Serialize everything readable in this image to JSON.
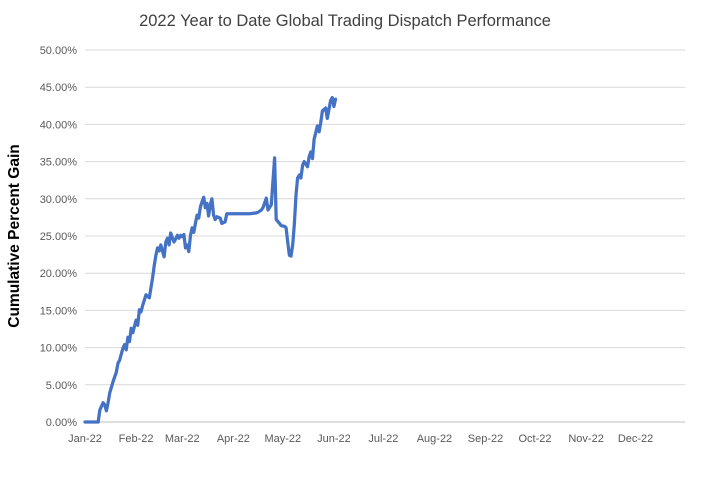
{
  "chart": {
    "title": "2022 Year to Date Global Trading Dispatch Performance",
    "y_axis_title": "Cumulative Percent Gain",
    "colors": {
      "line": "#4472C4",
      "gridline": "#D9D9D9",
      "axis_line": "#BFBFBF",
      "tick_text": "#595959",
      "title_text": "#404040",
      "y_axis_title_text": "#000000",
      "background": "#FFFFFF"
    }
  },
  "chart_data": {
    "type": "line",
    "title": "2022 Year to Date Global Trading Dispatch Performance",
    "xlabel": "",
    "ylabel": "Cumulative Percent Gain",
    "ylim": [
      0,
      50
    ],
    "grid": true,
    "legend": false,
    "y_tick_values": [
      0,
      5,
      10,
      15,
      20,
      25,
      30,
      35,
      40,
      45,
      50
    ],
    "y_tick_labels": [
      "0.00%",
      "5.00%",
      "10.00%",
      "15.00%",
      "20.00%",
      "25.00%",
      "30.00%",
      "35.00%",
      "40.00%",
      "45.00%",
      "50.00%"
    ],
    "x_tick_labels": [
      "Jan-22",
      "Feb-22",
      "Mar-22",
      "Apr-22",
      "May-22",
      "Jun-22",
      "Jul-22",
      "Aug-22",
      "Sep-22",
      "Oct-22",
      "Nov-22",
      "Dec-22"
    ],
    "x_tick_days_of_year": [
      1,
      32,
      60,
      91,
      121,
      152,
      182,
      213,
      244,
      274,
      305,
      335
    ],
    "x_range_days": [
      1,
      365
    ],
    "series": [
      {
        "name": "Cumulative Percent Gain",
        "color": "#4472C4",
        "points": [
          [
            "2022-01-01",
            0.0
          ],
          [
            "2022-01-06",
            0.0
          ],
          [
            "2022-01-09",
            0.0
          ],
          [
            "2022-01-10",
            1.6
          ],
          [
            "2022-01-12",
            2.6
          ],
          [
            "2022-01-13",
            2.3
          ],
          [
            "2022-01-14",
            1.5
          ],
          [
            "2022-01-15",
            2.6
          ],
          [
            "2022-01-16",
            3.9
          ],
          [
            "2022-01-18",
            5.4
          ],
          [
            "2022-01-20",
            6.7
          ],
          [
            "2022-01-21",
            7.9
          ],
          [
            "2022-01-22",
            8.3
          ],
          [
            "2022-01-24",
            9.9
          ],
          [
            "2022-01-25",
            10.4
          ],
          [
            "2022-01-26",
            9.7
          ],
          [
            "2022-01-27",
            11.4
          ],
          [
            "2022-01-28",
            10.8
          ],
          [
            "2022-01-29",
            12.6
          ],
          [
            "2022-01-30",
            12.0
          ],
          [
            "2022-02-01",
            13.7
          ],
          [
            "2022-02-02",
            13.0
          ],
          [
            "2022-02-03",
            15.1
          ],
          [
            "2022-02-04",
            14.8
          ],
          [
            "2022-02-05",
            15.7
          ],
          [
            "2022-02-07",
            17.1
          ],
          [
            "2022-02-09",
            16.7
          ],
          [
            "2022-02-10",
            18.0
          ],
          [
            "2022-02-11",
            19.4
          ],
          [
            "2022-02-12",
            21.0
          ],
          [
            "2022-02-13",
            22.4
          ],
          [
            "2022-02-14",
            23.4
          ],
          [
            "2022-02-15",
            23.0
          ],
          [
            "2022-02-16",
            23.8
          ],
          [
            "2022-02-18",
            22.2
          ],
          [
            "2022-02-19",
            24.2
          ],
          [
            "2022-02-20",
            24.7
          ],
          [
            "2022-02-21",
            23.8
          ],
          [
            "2022-02-22",
            25.4
          ],
          [
            "2022-02-24",
            24.2
          ],
          [
            "2022-02-25",
            24.6
          ],
          [
            "2022-02-26",
            25.1
          ],
          [
            "2022-02-27",
            24.7
          ],
          [
            "2022-02-28",
            25.1
          ],
          [
            "2022-03-01",
            24.9
          ],
          [
            "2022-03-02",
            25.2
          ],
          [
            "2022-03-03",
            23.4
          ],
          [
            "2022-03-04",
            23.8
          ],
          [
            "2022-03-05",
            22.9
          ],
          [
            "2022-03-06",
            25.1
          ],
          [
            "2022-03-07",
            26.1
          ],
          [
            "2022-03-08",
            25.5
          ],
          [
            "2022-03-09",
            26.7
          ],
          [
            "2022-03-10",
            27.8
          ],
          [
            "2022-03-11",
            27.4
          ],
          [
            "2022-03-12",
            28.9
          ],
          [
            "2022-03-13",
            29.6
          ],
          [
            "2022-03-14",
            30.2
          ],
          [
            "2022-03-15",
            28.8
          ],
          [
            "2022-03-16",
            29.4
          ],
          [
            "2022-03-17",
            27.7
          ],
          [
            "2022-03-18",
            29.2
          ],
          [
            "2022-03-19",
            30.0
          ],
          [
            "2022-03-20",
            27.8
          ],
          [
            "2022-03-21",
            27.2
          ],
          [
            "2022-03-22",
            27.6
          ],
          [
            "2022-03-24",
            27.4
          ],
          [
            "2022-03-25",
            26.7
          ],
          [
            "2022-03-27",
            26.9
          ],
          [
            "2022-03-28",
            28.0
          ],
          [
            "2022-04-04",
            28.0
          ],
          [
            "2022-04-11",
            28.0
          ],
          [
            "2022-04-15",
            28.1
          ],
          [
            "2022-04-16",
            28.2
          ],
          [
            "2022-04-18",
            28.5
          ],
          [
            "2022-04-19",
            28.8
          ],
          [
            "2022-04-21",
            30.1
          ],
          [
            "2022-04-22",
            28.5
          ],
          [
            "2022-04-24",
            29.2
          ],
          [
            "2022-04-26",
            35.5
          ],
          [
            "2022-04-27",
            27.2
          ],
          [
            "2022-04-29",
            26.7
          ],
          [
            "2022-04-30",
            26.4
          ],
          [
            "2022-05-02",
            26.3
          ],
          [
            "2022-05-03",
            26.1
          ],
          [
            "2022-05-04",
            24.2
          ],
          [
            "2022-05-05",
            22.4
          ],
          [
            "2022-05-06",
            22.3
          ],
          [
            "2022-05-07",
            23.8
          ],
          [
            "2022-05-08",
            26.5
          ],
          [
            "2022-05-09",
            30.5
          ],
          [
            "2022-05-10",
            32.8
          ],
          [
            "2022-05-11",
            33.2
          ],
          [
            "2022-05-12",
            32.8
          ],
          [
            "2022-05-13",
            34.5
          ],
          [
            "2022-05-14",
            35.0
          ],
          [
            "2022-05-16",
            34.3
          ],
          [
            "2022-05-17",
            35.7
          ],
          [
            "2022-05-18",
            36.3
          ],
          [
            "2022-05-19",
            35.4
          ],
          [
            "2022-05-20",
            38.0
          ],
          [
            "2022-05-22",
            39.8
          ],
          [
            "2022-05-23",
            39.0
          ],
          [
            "2022-05-24",
            40.2
          ],
          [
            "2022-05-25",
            41.8
          ],
          [
            "2022-05-27",
            42.2
          ],
          [
            "2022-05-28",
            40.8
          ],
          [
            "2022-05-30",
            43.2
          ],
          [
            "2022-05-31",
            43.6
          ],
          [
            "2022-06-01",
            42.4
          ],
          [
            "2022-06-02",
            43.4
          ]
        ]
      }
    ]
  }
}
